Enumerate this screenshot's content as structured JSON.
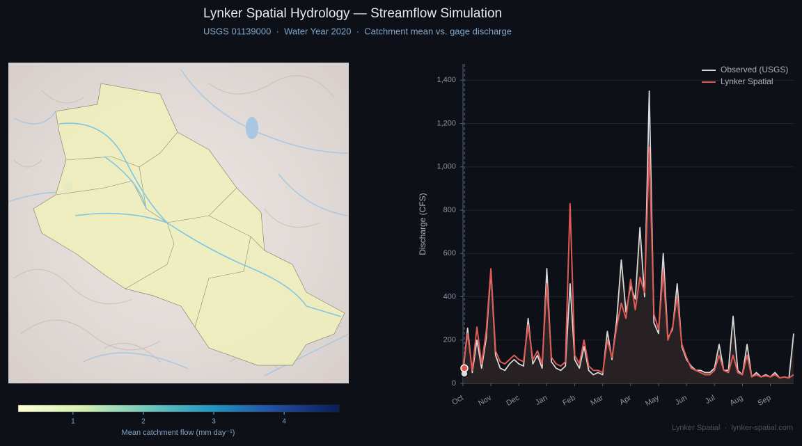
{
  "header": {
    "title": "Lynker Spatial Hydrology — Streamflow Simulation",
    "subtitle": "USGS 01139000  ·  Water Year 2020  ·  Catchment mean vs. gage discharge"
  },
  "colorbar": {
    "label": "Mean catchment flow (mm day⁻¹)",
    "lim": [
      0.22,
      4.78
    ],
    "ticks": [
      1,
      2,
      3,
      4
    ]
  },
  "chart_data": {
    "type": "line",
    "ylabel": "Discharge (CFS)",
    "categories": [
      "Oct",
      null,
      null,
      null,
      null,
      null,
      "Nov",
      null,
      null,
      null,
      null,
      null,
      "Dec",
      null,
      null,
      null,
      null,
      null,
      "Jan",
      null,
      null,
      null,
      null,
      null,
      "Feb",
      null,
      null,
      null,
      null,
      null,
      "Mar",
      null,
      null,
      null,
      null,
      null,
      "Apr",
      null,
      null,
      null,
      null,
      null,
      "May",
      null,
      null,
      null,
      null,
      null,
      "Jun",
      null,
      null,
      null,
      null,
      null,
      "Jul",
      null,
      null,
      null,
      null,
      null,
      "Aug",
      null,
      null,
      null,
      null,
      null,
      "Sep",
      null,
      null,
      null,
      null,
      null
    ],
    "series": [
      {
        "name": "Observed (USGS)",
        "color": "#d9d9d9",
        "values": [
          45,
          255,
          50,
          200,
          70,
          210,
          520,
          130,
          70,
          60,
          90,
          110,
          90,
          80,
          300,
          90,
          130,
          70,
          530,
          100,
          70,
          60,
          80,
          460,
          110,
          70,
          170,
          60,
          40,
          50,
          40,
          240,
          110,
          290,
          570,
          330,
          450,
          390,
          720,
          400,
          1350,
          280,
          230,
          600,
          210,
          250,
          460,
          170,
          110,
          80,
          60,
          60,
          50,
          50,
          70,
          180,
          60,
          60,
          310,
          60,
          40,
          180,
          30,
          50,
          30,
          40,
          30,
          50,
          25,
          30,
          25,
          230
        ]
      },
      {
        "name": "Lynker Spatial",
        "color": "#e05a55",
        "values": [
          70,
          230,
          60,
          260,
          90,
          240,
          530,
          150,
          100,
          90,
          110,
          130,
          110,
          100,
          270,
          110,
          150,
          90,
          460,
          120,
          90,
          80,
          100,
          830,
          130,
          90,
          200,
          80,
          60,
          60,
          50,
          200,
          120,
          260,
          370,
          300,
          480,
          340,
          490,
          420,
          1090,
          320,
          250,
          520,
          200,
          260,
          400,
          180,
          120,
          70,
          60,
          50,
          40,
          40,
          60,
          130,
          60,
          50,
          130,
          50,
          40,
          130,
          30,
          40,
          30,
          35,
          30,
          40,
          25,
          30,
          25,
          40
        ]
      }
    ],
    "ylim": [
      0,
      1475
    ],
    "yticks": [
      0,
      200,
      400,
      600,
      800,
      {
        "value": 1000,
        "label": "1,000"
      },
      {
        "value": 1200,
        "label": "1,200"
      },
      {
        "value": 1400,
        "label": "1,400"
      }
    ],
    "grid": true,
    "legend": "upper right"
  },
  "footer": "Lynker Spatial  ·  lynker-spatial.com"
}
